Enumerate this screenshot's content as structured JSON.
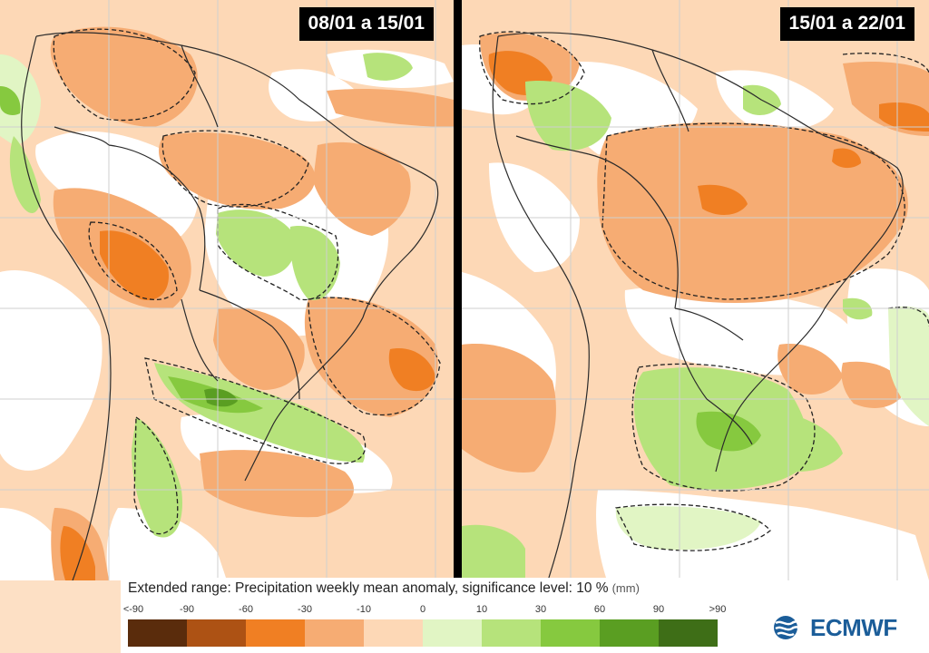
{
  "panels": [
    {
      "date_range": "08/01 a 15/01"
    },
    {
      "date_range": "15/01 a 22/01"
    }
  ],
  "legend": {
    "title": "Extended range: Precipitation weekly mean anomaly, significance level: 10 %",
    "unit": "(mm)",
    "ticks": [
      "<-90",
      "-90",
      "-60",
      "-30",
      "-10",
      "0",
      "10",
      "30",
      "60",
      "90",
      ">90"
    ],
    "colors": [
      "#5a2c0c",
      "#ad5214",
      "#f07f23",
      "#f6ac73",
      "#fdd8b6",
      "#ffffff",
      "#e1f5c4",
      "#b6e37b",
      "#86c93f",
      "#5a9e22",
      "#3e6e17"
    ]
  },
  "logo": {
    "text": "ECMWF"
  },
  "map_colors": {
    "light_orange": "#fdd8b6",
    "mid_orange": "#f6ac73",
    "strong_orange": "#f07f23",
    "light_green": "#e1f5c4",
    "mid_green": "#b6e37b",
    "strong_green": "#86c93f",
    "dark_green": "#5a9e22",
    "border": "#333333",
    "grid": "#cccccc"
  }
}
